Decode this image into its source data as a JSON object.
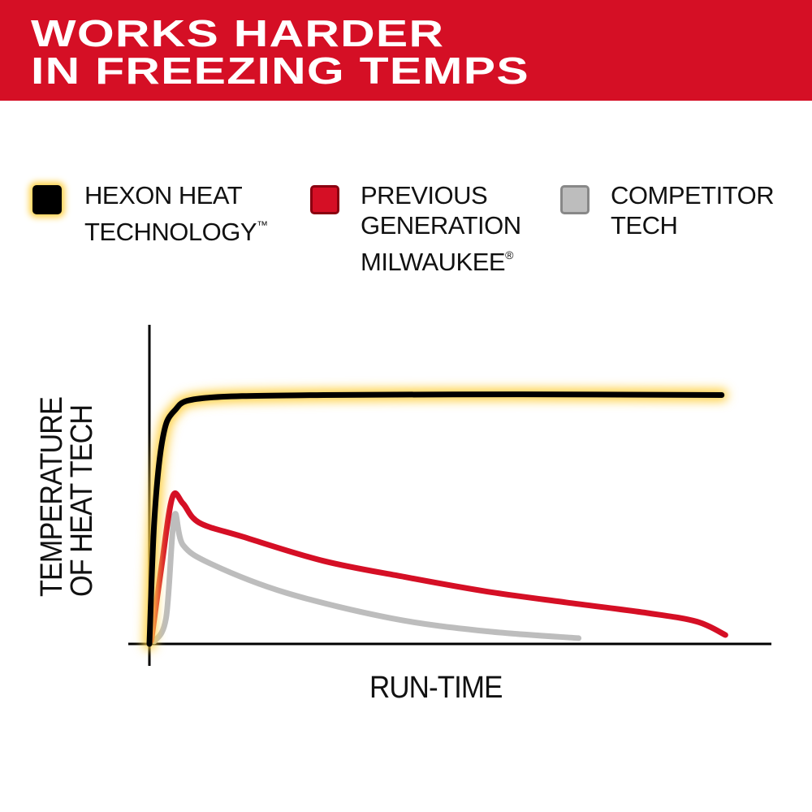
{
  "header": {
    "title_line1": "WORKS HARDER",
    "title_line2": "IN FREEZING TEMPS"
  },
  "colors": {
    "brand_red": "#d50f25",
    "hexon": "#000000",
    "glow": "#ffd24a",
    "previous": "#d50f25",
    "competitor": "#bdbdbd"
  },
  "chart_data": {
    "type": "line",
    "title": "",
    "xlabel": "RUN-TIME",
    "ylabel_line1": "TEMPERATURE",
    "ylabel_line2": "OF HEAT TECH",
    "xlim": [
      0,
      100
    ],
    "ylim": [
      0,
      100
    ],
    "ticks": "none",
    "grid": false,
    "legend_placement": "top",
    "series": [
      {
        "name_line1": "HEXON HEAT",
        "name_line2": "TECHNOLOGY",
        "name_mark": "™",
        "color": "#000000",
        "glow": true,
        "x": [
          0,
          0.8,
          2.1,
          4,
          8.6,
          28,
          60,
          92
        ],
        "y": [
          0,
          39,
          64,
          73,
          77,
          78,
          78.2,
          78
        ]
      },
      {
        "name_line1": "PREVIOUS",
        "name_line2": "GENERATION",
        "name_line3": "MILWAUKEE",
        "name_mark": "®",
        "color": "#d50f25",
        "x": [
          0.3,
          2,
          3.7,
          5.4,
          8,
          15,
          28,
          41,
          54,
          67,
          80,
          88,
          92.6
        ],
        "y": [
          1,
          25,
          46,
          44,
          38,
          33.6,
          26,
          21,
          16.5,
          13,
          9.7,
          7,
          2.8
        ]
      },
      {
        "name_line1": "COMPETITOR",
        "name_line2": "TECH",
        "color": "#bdbdbd",
        "x": [
          0.8,
          2.7,
          4,
          5.4,
          10,
          22,
          39,
          54,
          69
        ],
        "y": [
          0.8,
          8.4,
          40,
          31,
          25,
          16,
          8,
          4,
          1.8
        ]
      }
    ]
  }
}
